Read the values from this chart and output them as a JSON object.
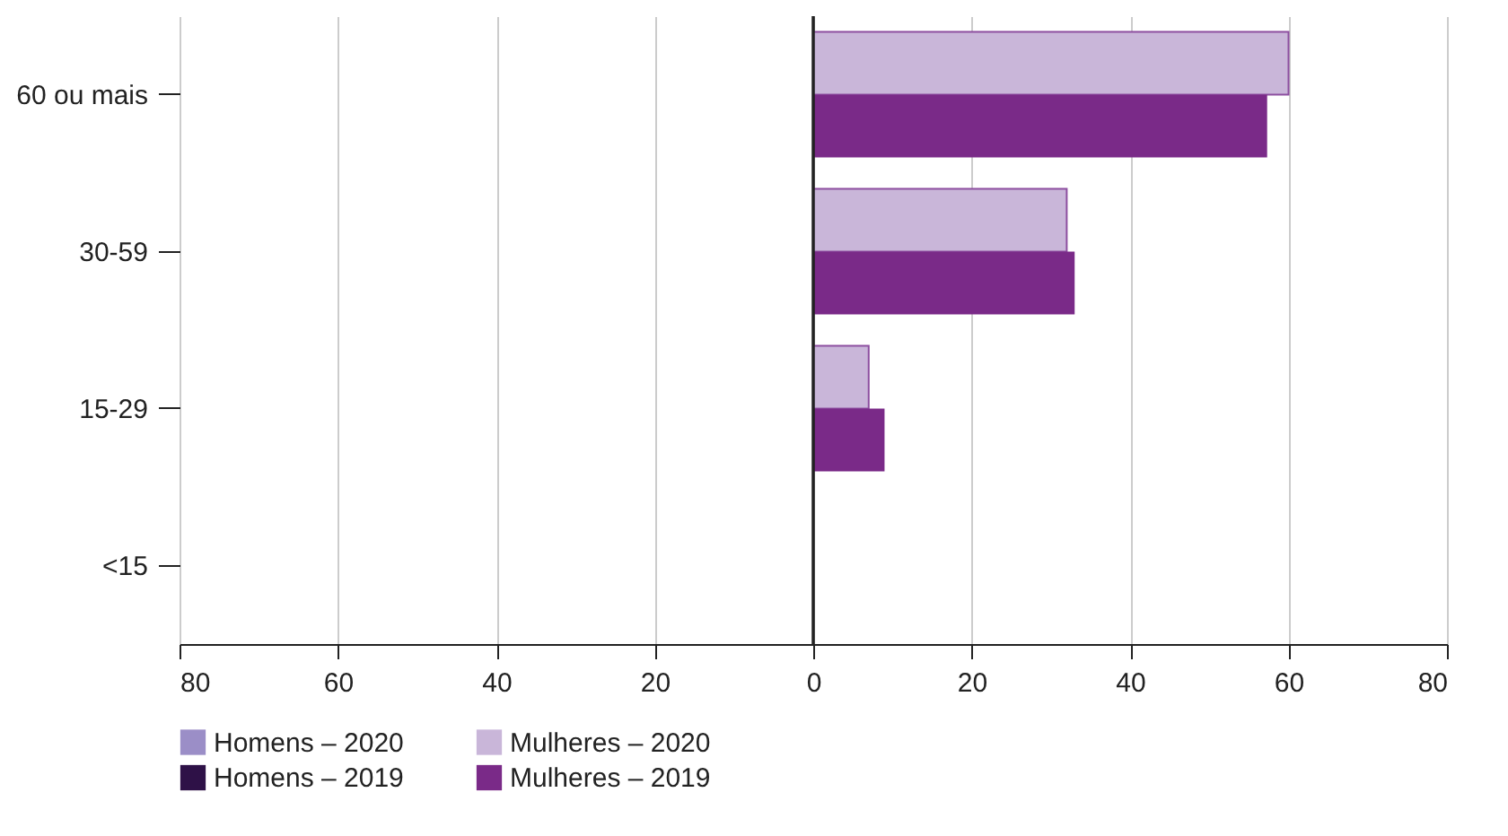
{
  "chart_data": {
    "type": "bar",
    "orientation": "horizontal",
    "categories": [
      "60 ou mais",
      "30-59",
      "15-29",
      "<15"
    ],
    "series": [
      {
        "name": "Homens – 2020",
        "color": "#9b8ec7",
        "values": [
          null,
          null,
          null,
          null
        ]
      },
      {
        "name": "Mulheres – 2020",
        "color": "#c9b6d9",
        "values": [
          60,
          32,
          7,
          null
        ]
      },
      {
        "name": "Homens – 2019",
        "color": "#2e1147",
        "values": [
          null,
          null,
          null,
          null
        ]
      },
      {
        "name": "Mulheres – 2019",
        "color": "#7a2a88",
        "values": [
          57.3,
          33,
          9,
          null
        ]
      }
    ],
    "xlim": [
      -80,
      80
    ],
    "xticks": [
      {
        "value": -80,
        "label": "80"
      },
      {
        "value": -60,
        "label": "60"
      },
      {
        "value": -40,
        "label": "40"
      },
      {
        "value": -20,
        "label": "20"
      },
      0,
      20,
      40,
      60,
      80
    ],
    "grid": "x",
    "legend": "bottom"
  }
}
